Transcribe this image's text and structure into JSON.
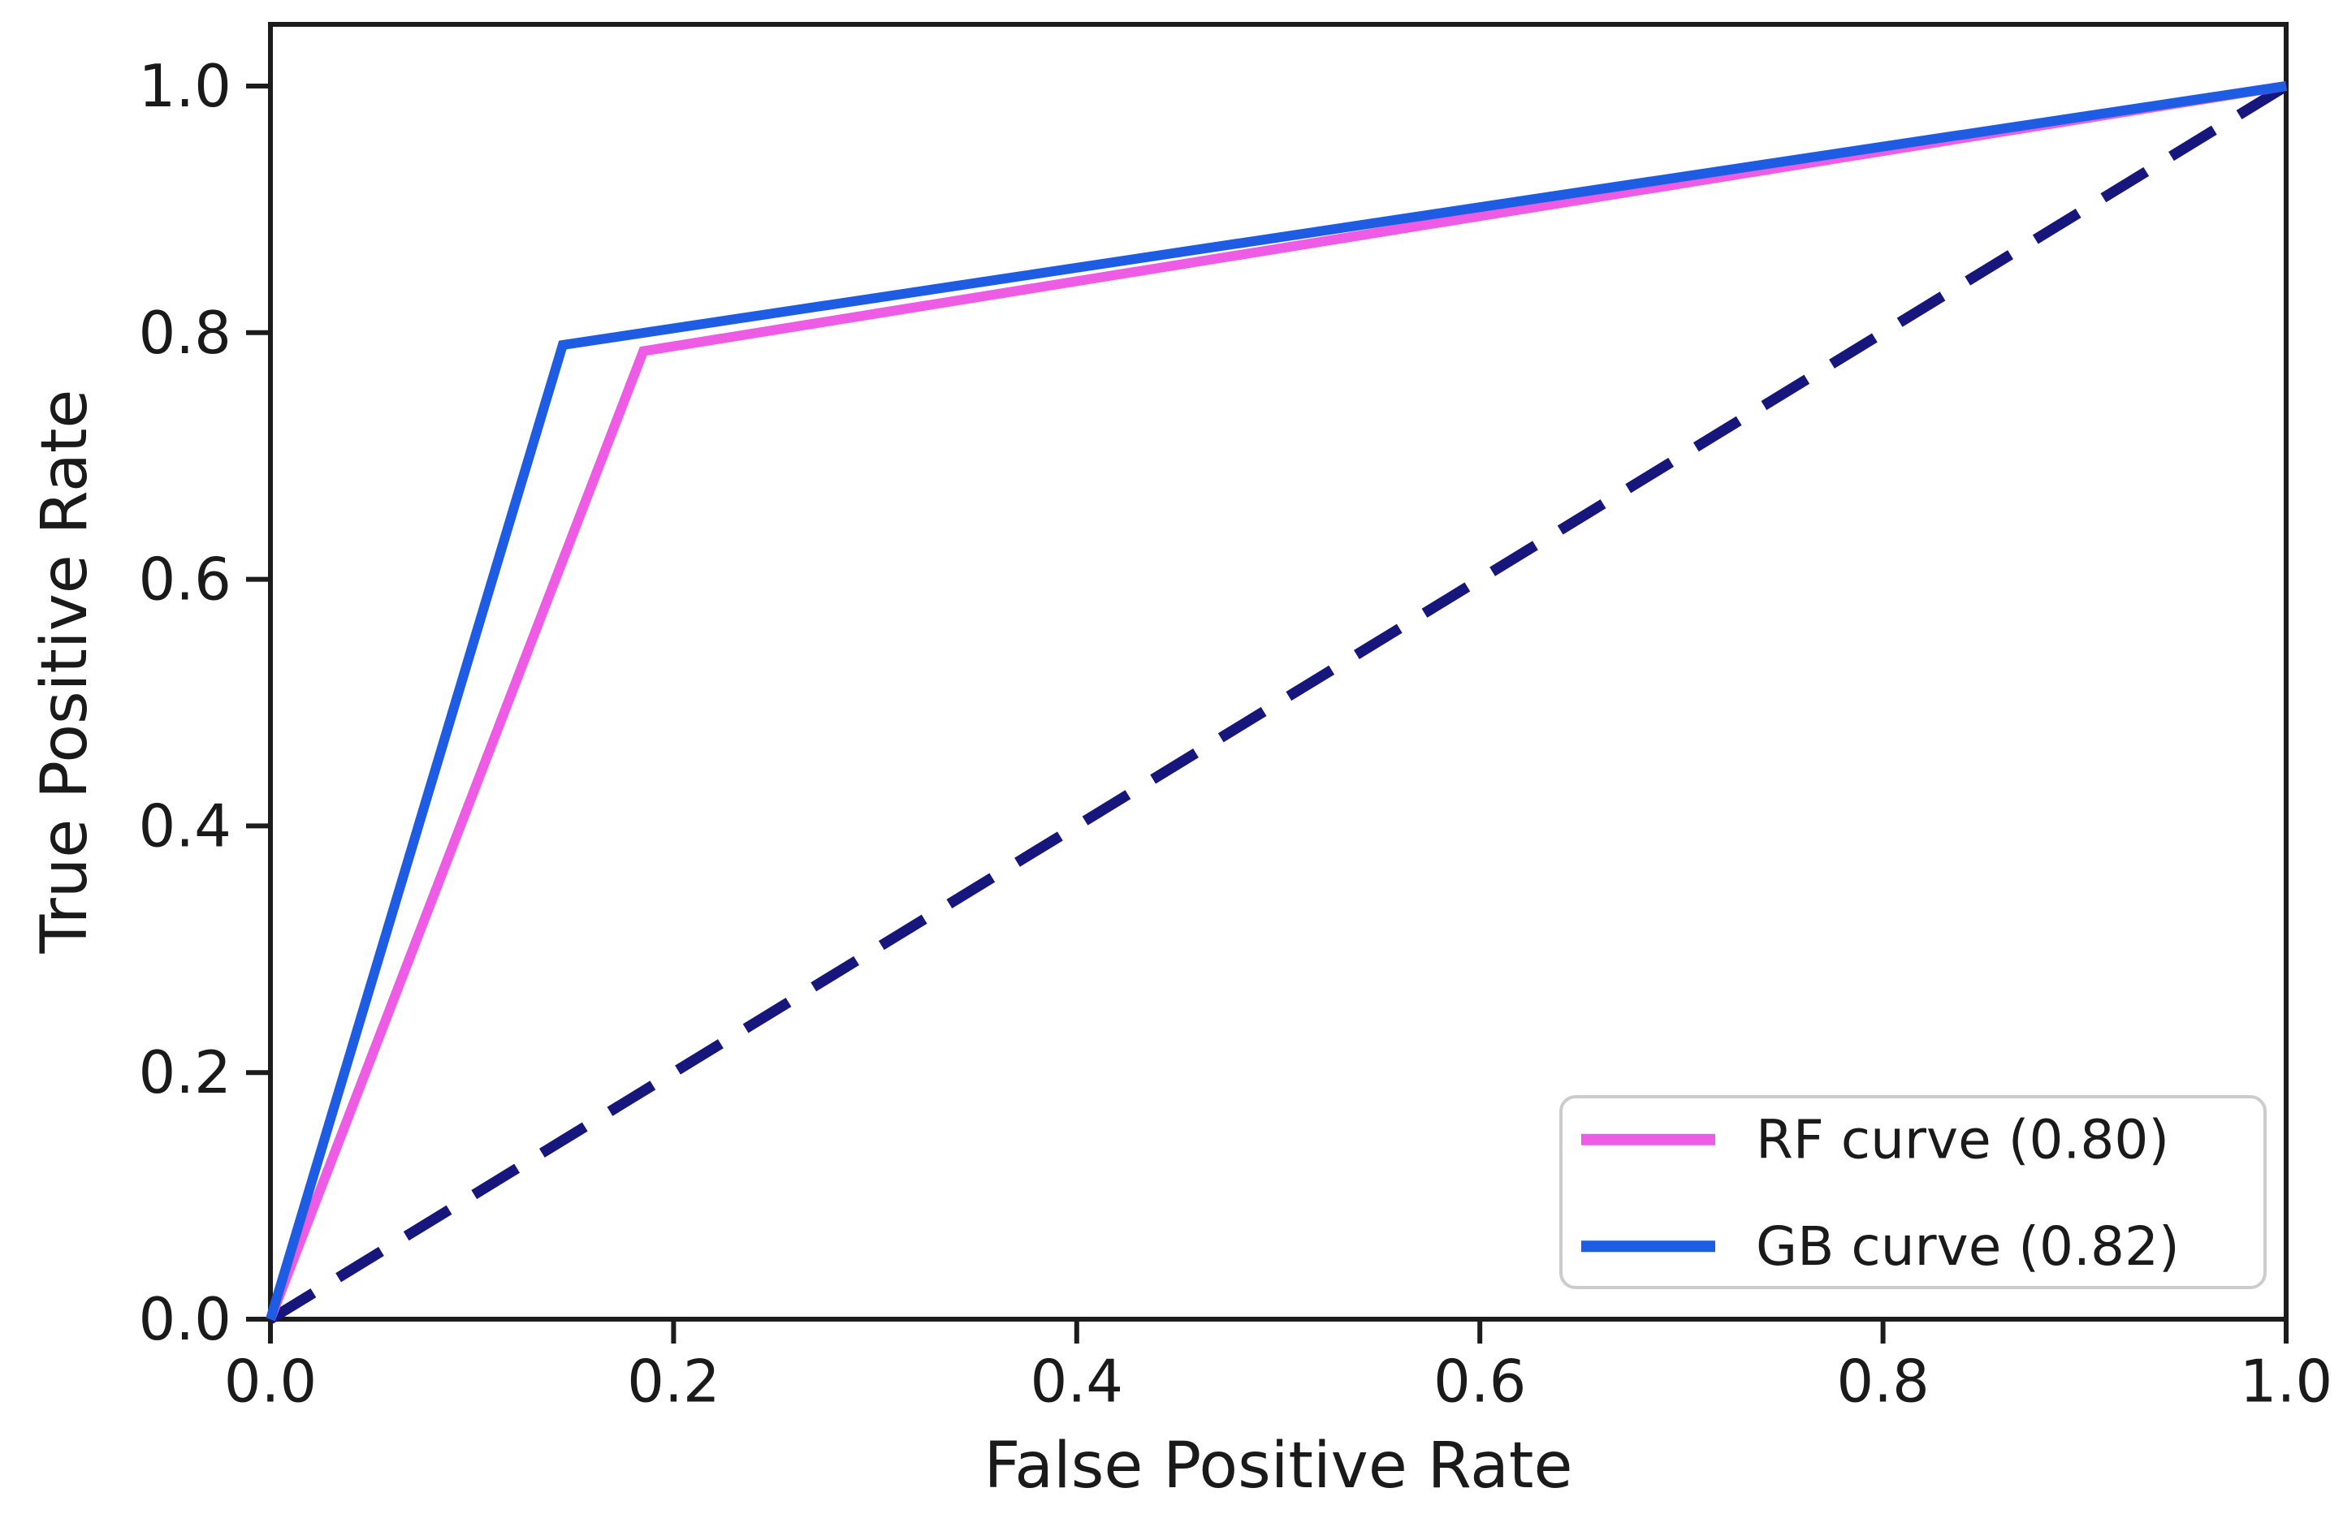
{
  "chart_data": {
    "type": "line",
    "title": "",
    "xlabel": "False Positive Rate",
    "ylabel": "True Positive Rate",
    "xlim": [
      0.0,
      1.0
    ],
    "ylim": [
      0.0,
      1.05
    ],
    "grid": false,
    "legend_position": "lower right",
    "x_tick_values": [
      0.0,
      0.2,
      0.4,
      0.6,
      0.8,
      1.0
    ],
    "x_tick_labels": [
      "0.0",
      "0.2",
      "0.4",
      "0.6",
      "0.8",
      "1.0"
    ],
    "y_tick_values": [
      0.0,
      0.2,
      0.4,
      0.6,
      0.8,
      1.0
    ],
    "y_tick_labels": [
      "0.0",
      "0.2",
      "0.4",
      "0.6",
      "0.8",
      "1.0"
    ],
    "series": [
      {
        "key": "chance",
        "name": "chance line",
        "color": "#16167d",
        "style": "dashed",
        "in_legend": false,
        "points": [
          [
            0.0,
            0.0
          ],
          [
            1.0,
            1.0
          ]
        ]
      },
      {
        "key": "rf",
        "name": "RF curve (0.80)",
        "auc": 0.8,
        "color": "#ee5be4",
        "style": "solid",
        "in_legend": true,
        "points": [
          [
            0.0,
            0.0
          ],
          [
            0.185,
            0.785
          ],
          [
            1.0,
            1.0
          ]
        ]
      },
      {
        "key": "gb",
        "name": "GB curve (0.82)",
        "auc": 0.82,
        "color": "#1e5ce4",
        "style": "solid",
        "in_legend": true,
        "points": [
          [
            0.0,
            0.0
          ],
          [
            0.145,
            0.79
          ],
          [
            1.0,
            1.0
          ]
        ]
      }
    ]
  }
}
